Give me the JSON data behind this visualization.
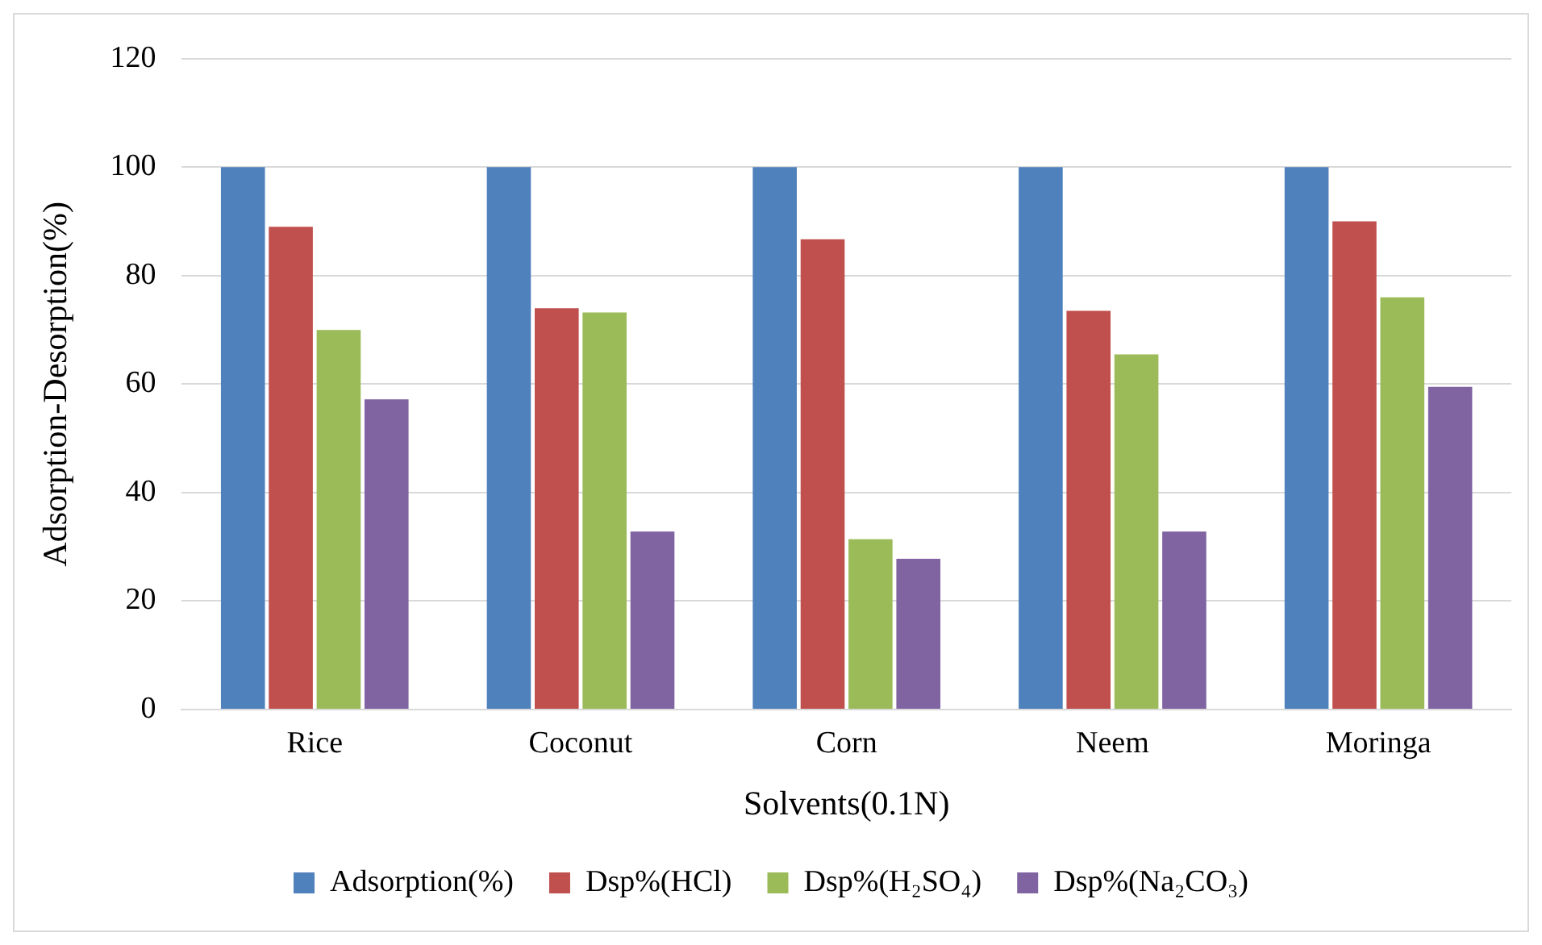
{
  "chart_data": {
    "type": "bar",
    "xlabel": "Solvents(0.1N)",
    "ylabel": "Adsorption-Desorption(%)",
    "categories": [
      "Rice",
      "Coconut",
      "Corn",
      "Neem",
      "Moringa"
    ],
    "series": [
      {
        "name": "Adsorption(%)",
        "color": "#4f81bd",
        "values": [
          100,
          100,
          100,
          100,
          100
        ]
      },
      {
        "name": "Dsp%(HCl)",
        "color": "#c0504d",
        "values": [
          89,
          74,
          86.7,
          73.5,
          90
        ]
      },
      {
        "name": "Dsp%(H₂SO₄)",
        "color": "#9bbb59",
        "values": [
          70,
          73.2,
          31.4,
          65.5,
          76
        ]
      },
      {
        "name": "Dsp%(Na₂CO₃)",
        "color": "#8064a2",
        "values": [
          57.2,
          32.8,
          27.8,
          32.8,
          59.5
        ]
      }
    ],
    "ylim": [
      0,
      120
    ],
    "yticks": [
      0,
      20,
      40,
      60,
      80,
      100,
      120
    ],
    "grid": "y",
    "legend": "bottom"
  }
}
